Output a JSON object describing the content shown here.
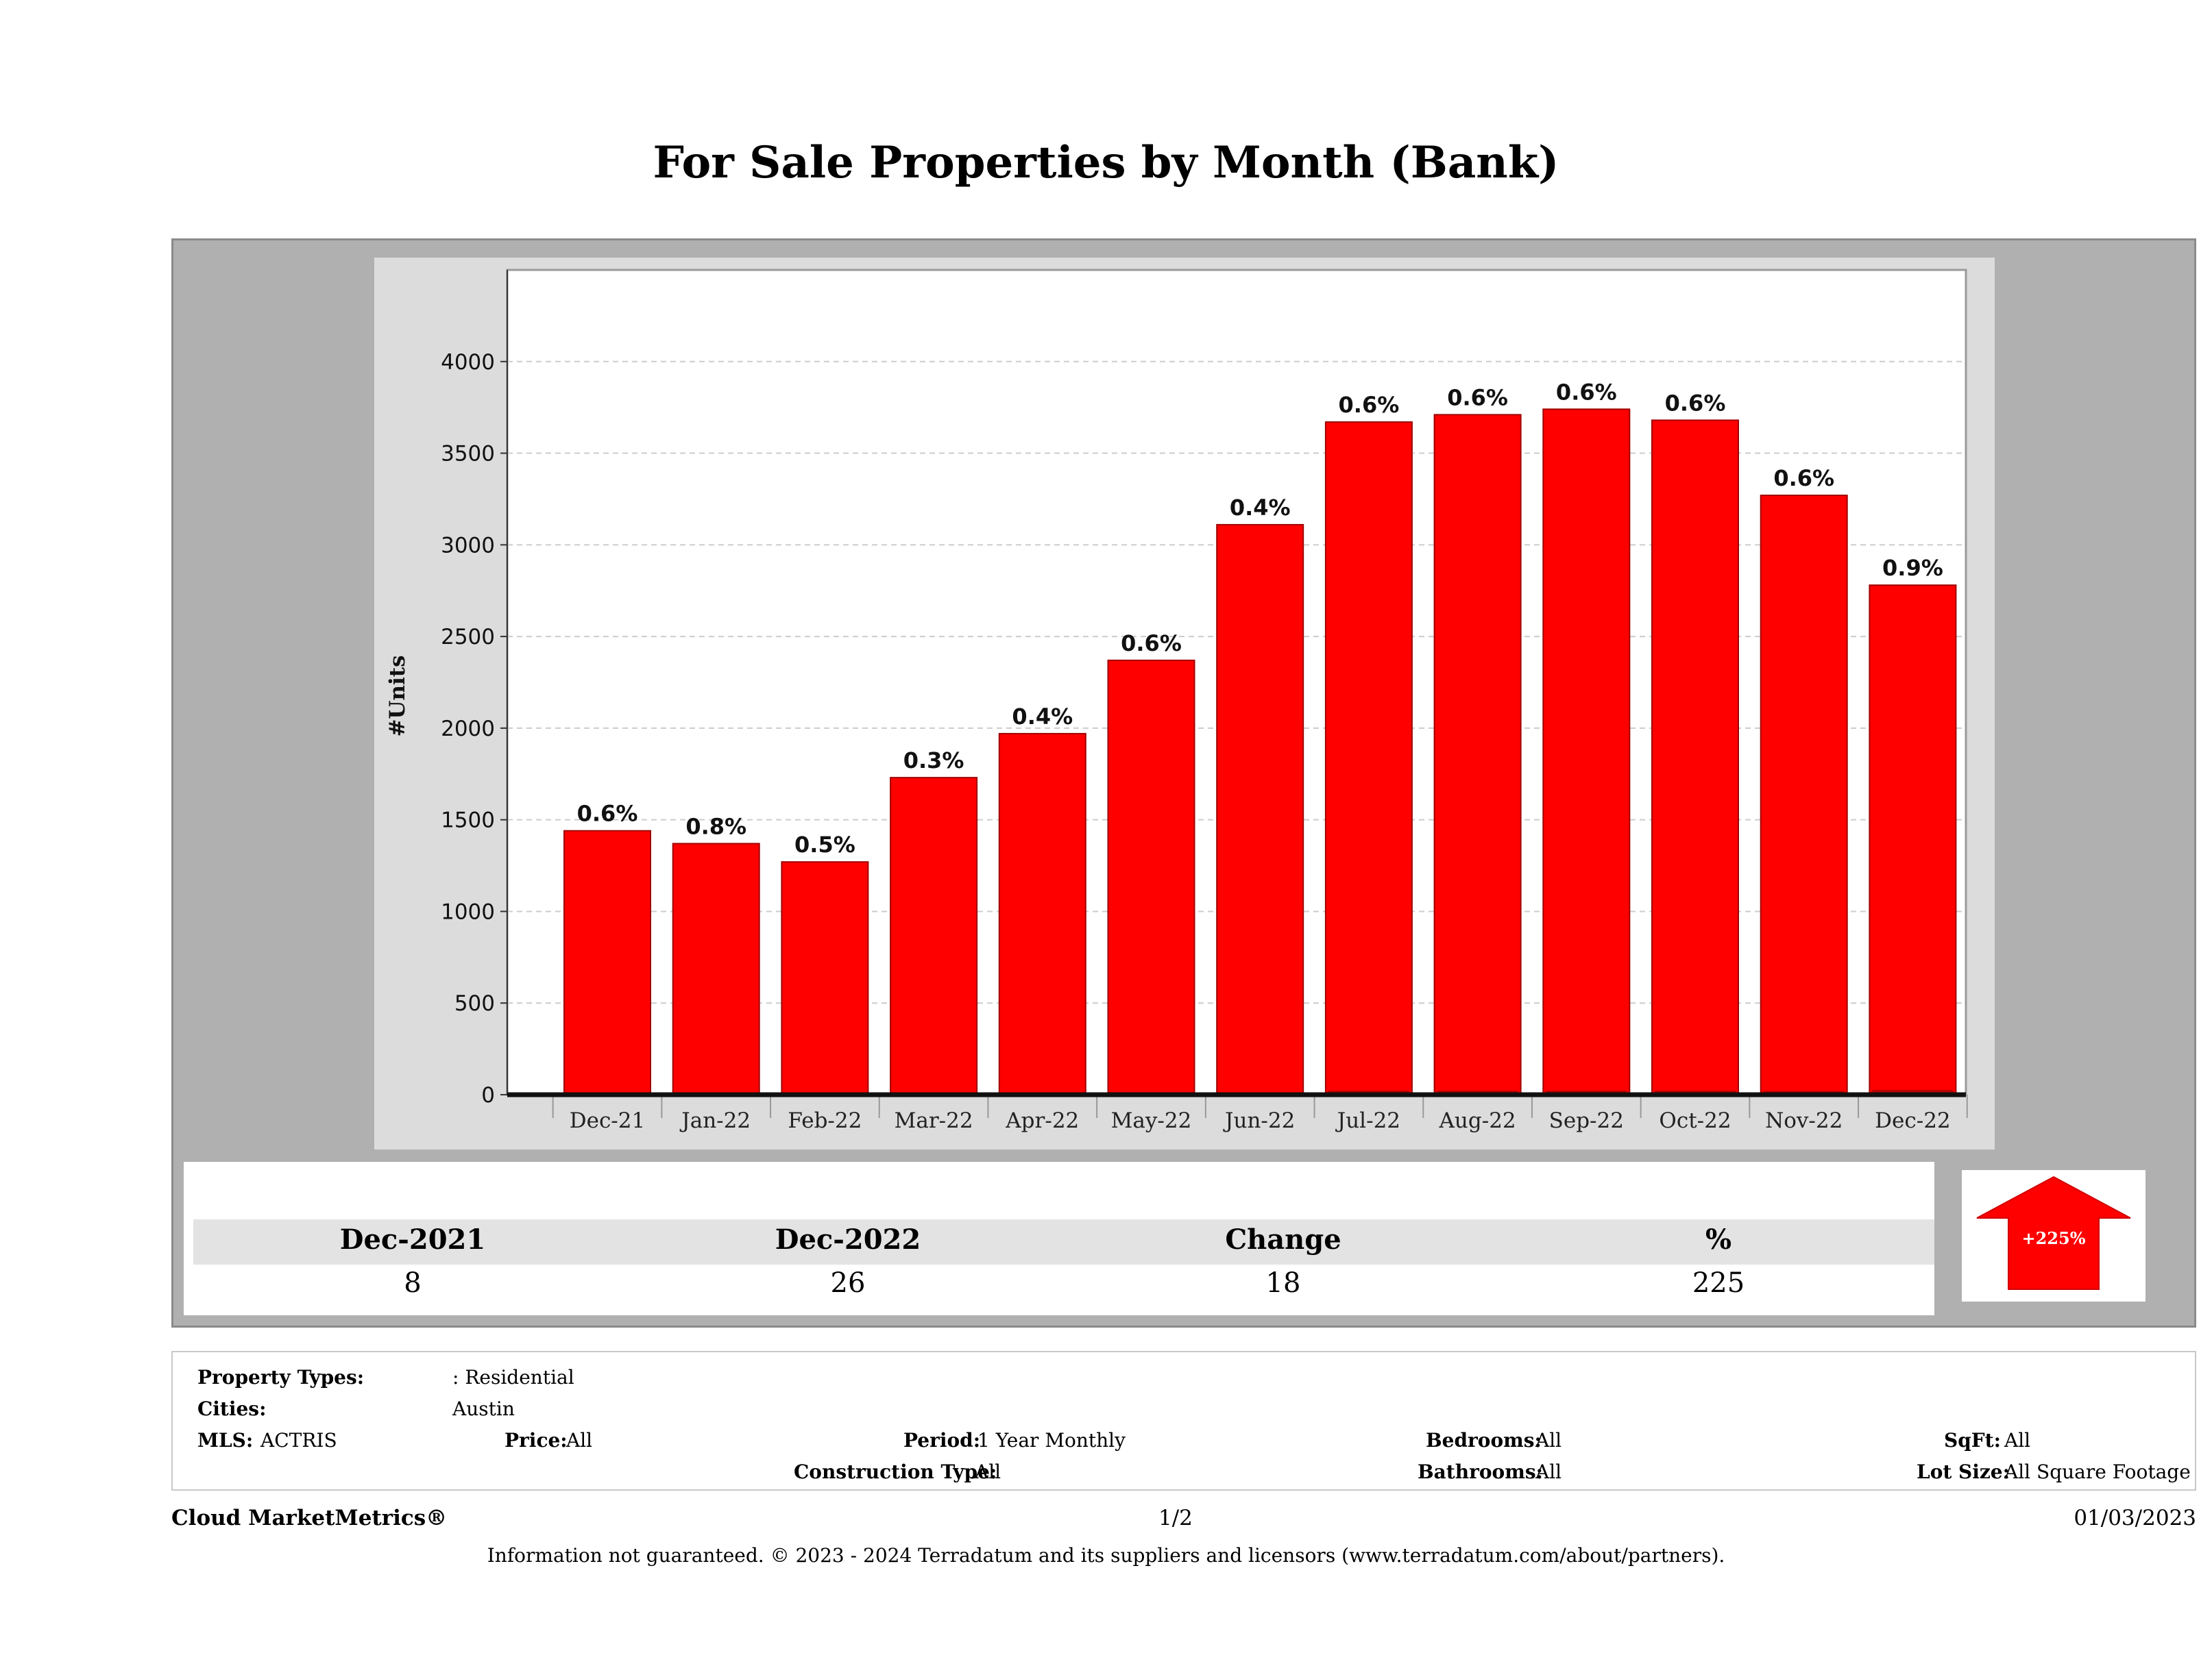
{
  "title": "For Sale Properties by Month (Bank)",
  "chart_data": {
    "type": "bar",
    "ylabel": "#Units",
    "xlabel": "",
    "ylim": [
      0,
      4500
    ],
    "yticks": [
      0,
      500,
      1000,
      1500,
      2000,
      2500,
      3000,
      3500,
      4000
    ],
    "grid": true,
    "categories": [
      "Dec-21",
      "Jan-22",
      "Feb-22",
      "Mar-22",
      "Apr-22",
      "May-22",
      "Jun-22",
      "Jul-22",
      "Aug-22",
      "Sep-22",
      "Oct-22",
      "Nov-22",
      "Dec-22"
    ],
    "series": [
      {
        "values": [
          1440,
          1370,
          1270,
          1730,
          1970,
          2370,
          3110,
          3670,
          3710,
          3740,
          3680,
          3270,
          2780
        ],
        "color": "#ff0000"
      },
      {
        "values": [
          8,
          11,
          6,
          5,
          8,
          14,
          12,
          22,
          22,
          22,
          22,
          20,
          26
        ],
        "color": "#b80000"
      }
    ],
    "data_labels": [
      "0.6%",
      "0.8%",
      "0.5%",
      "0.3%",
      "0.4%",
      "0.6%",
      "0.4%",
      "0.6%",
      "0.6%",
      "0.6%",
      "0.6%",
      "0.6%",
      "0.9%"
    ]
  },
  "summary": {
    "headers": [
      "Dec-2021",
      "Dec-2022",
      "Change",
      "%"
    ],
    "values": [
      "8",
      "26",
      "18",
      "225"
    ],
    "badge": "+225%",
    "badge_color": "#ff0000",
    "badge_icon": "up-arrow-icon"
  },
  "info": {
    "property_types_label": "Property Types:",
    "property_types_value": ": Residential",
    "cities_label": "Cities:",
    "cities_value": "Austin",
    "mls_label": "MLS:",
    "mls_value": "ACTRIS",
    "price_label": "Price:",
    "price_value": "All",
    "period_label": "Period:",
    "period_value": "1 Year Monthly",
    "construction_label": "Construction Type:",
    "construction_value": "All",
    "bedrooms_label": "Bedrooms:",
    "bedrooms_value": "All",
    "bathrooms_label": "Bathrooms:",
    "bathrooms_value": "All",
    "sqft_label": "SqFt:",
    "sqft_value": "All",
    "lotsize_label": "Lot Size:",
    "lotsize_value": "All Square Footage"
  },
  "footer": {
    "brand": "Cloud MarketMetrics®",
    "page": "1/2",
    "date": "01/03/2023",
    "disclaimer": "Information not guaranteed. © 2023 - 2024 Terradatum and its suppliers and licensors (www.terradatum.com/about/partners)."
  }
}
